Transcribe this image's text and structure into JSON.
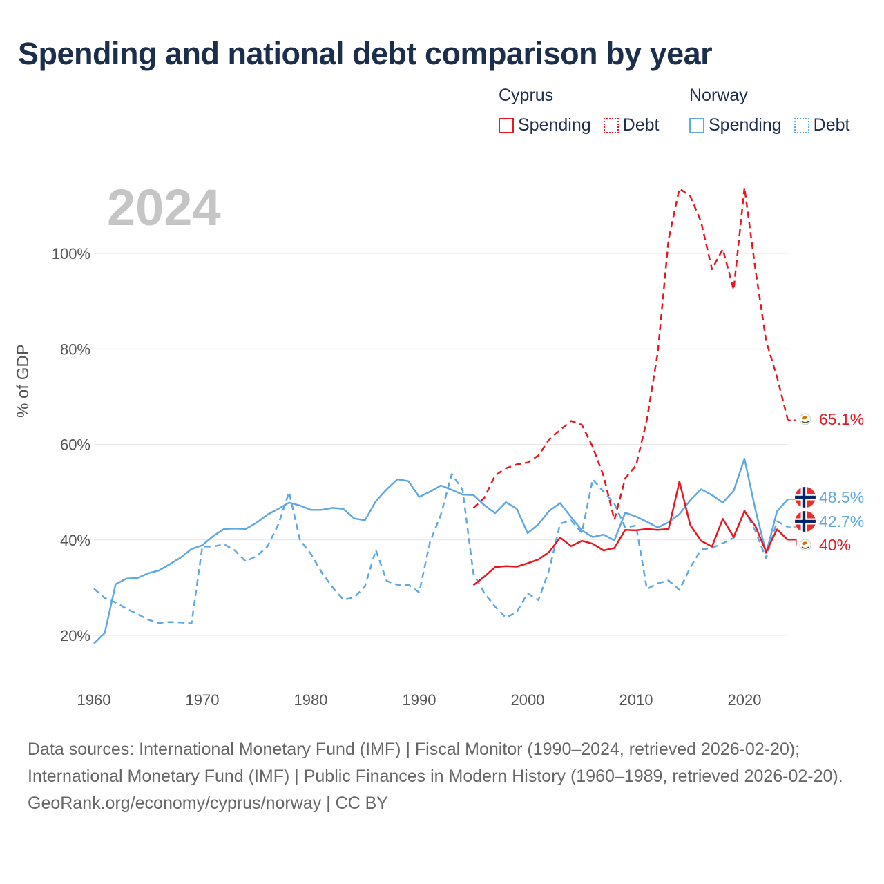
{
  "title": "Spending and national debt comparison by year",
  "year_label": "2024",
  "legend": {
    "cyprus": {
      "heading": "Cyprus",
      "spending": "Spending",
      "debt": "Debt",
      "color": "#e8171f"
    },
    "norway": {
      "heading": "Norway",
      "spending": "Spending",
      "debt": "Debt",
      "color": "#5fa8e2"
    }
  },
  "footer": {
    "sources": "Data sources: International Monetary Fund (IMF) | Fiscal Monitor (1990–2024, retrieved 2026-02-20); International Monetary Fund (IMF) | Public Finances in Modern History (1960–1989, retrieved 2026-02-20).",
    "credit": "GeoRank.org/economy/cyprus/norway | CC BY"
  },
  "chart_data": {
    "type": "line",
    "title": "Spending and national debt comparison by year",
    "ylabel": "% of GDP",
    "xlabel": "",
    "xlim": [
      1960,
      2024
    ],
    "ylim": [
      10,
      115
    ],
    "y_ticks": [
      20,
      40,
      60,
      80,
      100
    ],
    "y_tick_labels": [
      "20%",
      "40%",
      "60%",
      "80%",
      "100%"
    ],
    "x_ticks": [
      1960,
      1970,
      1980,
      1990,
      2000,
      2010,
      2020
    ],
    "x_tick_labels": [
      "1960",
      "1970",
      "1980",
      "1990",
      "2000",
      "2010",
      "2020"
    ],
    "end_labels": [
      {
        "series": "cyprus-debt",
        "text": "65.1%",
        "value": 65.1,
        "color": "#e8171f",
        "flag": "cyprus"
      },
      {
        "series": "norway-spending",
        "text": "48.5%",
        "value": 48.5,
        "color": "#5fa8e2",
        "flag": "norway"
      },
      {
        "series": "norway-debt",
        "text": "42.7%",
        "value": 42.7,
        "color": "#5fa8e2",
        "flag": "norway"
      },
      {
        "series": "cyprus-spending",
        "text": "40%",
        "value": 40.0,
        "color": "#e8171f",
        "flag": "cyprus"
      }
    ],
    "series": [
      {
        "id": "norway-spending",
        "name": "Norway Spending",
        "color": "#5fa8e2",
        "dash": false,
        "x": [
          1960,
          1961,
          1962,
          1963,
          1964,
          1965,
          1966,
          1967,
          1968,
          1969,
          1970,
          1971,
          1972,
          1973,
          1974,
          1975,
          1976,
          1977,
          1978,
          1979,
          1980,
          1981,
          1982,
          1983,
          1984,
          1985,
          1986,
          1987,
          1988,
          1989,
          1990,
          1991,
          1992,
          1993,
          1994,
          1995,
          1996,
          1997,
          1998,
          1999,
          2000,
          2001,
          2002,
          2003,
          2004,
          2005,
          2006,
          2007,
          2008,
          2009,
          2010,
          2011,
          2012,
          2013,
          2014,
          2015,
          2016,
          2017,
          2018,
          2019,
          2020,
          2021,
          2022,
          2023,
          2024
        ],
        "values": [
          18.3,
          20.5,
          30.7,
          31.9,
          32.0,
          33.0,
          33.6,
          34.9,
          36.3,
          38.1,
          38.9,
          40.8,
          42.3,
          42.4,
          42.3,
          43.6,
          45.3,
          46.5,
          47.8,
          47.2,
          46.3,
          46.3,
          46.7,
          46.5,
          44.5,
          44.1,
          48.1,
          50.6,
          52.7,
          52.3,
          49.0,
          50.1,
          51.4,
          50.5,
          49.5,
          49.4,
          47.3,
          45.6,
          47.9,
          46.5,
          41.4,
          43.3,
          46.1,
          47.7,
          44.8,
          42.0,
          40.6,
          41.1,
          39.9,
          45.7,
          44.9,
          43.8,
          42.6,
          43.7,
          45.4,
          48.3,
          50.6,
          49.4,
          47.8,
          50.3,
          57.0,
          46.4,
          37.2,
          46.0,
          48.5
        ]
      },
      {
        "id": "norway-debt",
        "name": "Norway Debt",
        "color": "#5fa8e2",
        "dash": true,
        "x": [
          1960,
          1961,
          1962,
          1963,
          1964,
          1965,
          1966,
          1967,
          1968,
          1969,
          1970,
          1971,
          1972,
          1973,
          1974,
          1975,
          1976,
          1977,
          1978,
          1979,
          1980,
          1981,
          1982,
          1983,
          1984,
          1985,
          1986,
          1987,
          1988,
          1989,
          1990,
          1991,
          1992,
          1993,
          1994,
          1995,
          1996,
          1997,
          1998,
          1999,
          2000,
          2001,
          2002,
          2003,
          2004,
          2005,
          2006,
          2007,
          2008,
          2009,
          2010,
          2011,
          2012,
          2013,
          2014,
          2015,
          2016,
          2017,
          2018,
          2019,
          2020,
          2021,
          2022,
          2023,
          2024
        ],
        "values": [
          29.8,
          27.8,
          26.9,
          25.6,
          24.5,
          23.3,
          22.6,
          22.8,
          22.7,
          22.5,
          38.6,
          38.6,
          39.1,
          37.8,
          35.5,
          36.6,
          38.6,
          43.2,
          50.0,
          40.0,
          37.1,
          33.2,
          30.1,
          27.5,
          27.9,
          30.3,
          37.9,
          31.4,
          30.6,
          30.6,
          29.0,
          39.6,
          45.3,
          53.8,
          50.5,
          32.9,
          28.9,
          26.0,
          23.7,
          24.9,
          28.8,
          27.4,
          33.8,
          43.4,
          44.1,
          41.5,
          52.7,
          50.1,
          47.6,
          42.6,
          43.0,
          29.7,
          30.9,
          31.5,
          29.5,
          34.2,
          38.0,
          38.3,
          39.3,
          40.4,
          46.2,
          41.9,
          36.1,
          43.9,
          42.7
        ]
      },
      {
        "id": "cyprus-debt",
        "name": "Cyprus Debt",
        "color": "#e8171f",
        "dash": true,
        "x": [
          1995,
          1996,
          1997,
          1998,
          1999,
          2000,
          2001,
          2002,
          2003,
          2004,
          2005,
          2006,
          2007,
          2008,
          2009,
          2010,
          2011,
          2012,
          2013,
          2014,
          2015,
          2016,
          2017,
          2018,
          2019,
          2020,
          2021,
          2022,
          2023,
          2024
        ],
        "values": [
          46.7,
          48.8,
          53.5,
          55.0,
          55.8,
          56.2,
          57.7,
          61.1,
          63.0,
          64.9,
          64.1,
          59.5,
          53.4,
          44.2,
          52.9,
          55.6,
          65.2,
          79.2,
          103.0,
          113.6,
          112.0,
          106.6,
          96.7,
          100.9,
          92.4,
          113.8,
          96.8,
          81.6,
          74.1,
          65.1
        ]
      },
      {
        "id": "cyprus-spending",
        "name": "Cyprus Spending",
        "color": "#e8171f",
        "dash": false,
        "x": [
          1995,
          1996,
          1997,
          1998,
          1999,
          2000,
          2001,
          2002,
          2003,
          2004,
          2005,
          2006,
          2007,
          2008,
          2009,
          2010,
          2011,
          2012,
          2013,
          2014,
          2015,
          2016,
          2017,
          2018,
          2019,
          2020,
          2021,
          2022,
          2023,
          2024
        ],
        "values": [
          30.5,
          32.3,
          34.3,
          34.5,
          34.4,
          35.1,
          35.9,
          37.5,
          40.5,
          38.7,
          39.8,
          39.2,
          37.8,
          38.3,
          42.1,
          42.0,
          42.3,
          42.1,
          42.3,
          52.2,
          43.1,
          39.8,
          38.6,
          44.4,
          40.6,
          46.0,
          42.9,
          37.5,
          42.2,
          40.0
        ]
      }
    ]
  }
}
